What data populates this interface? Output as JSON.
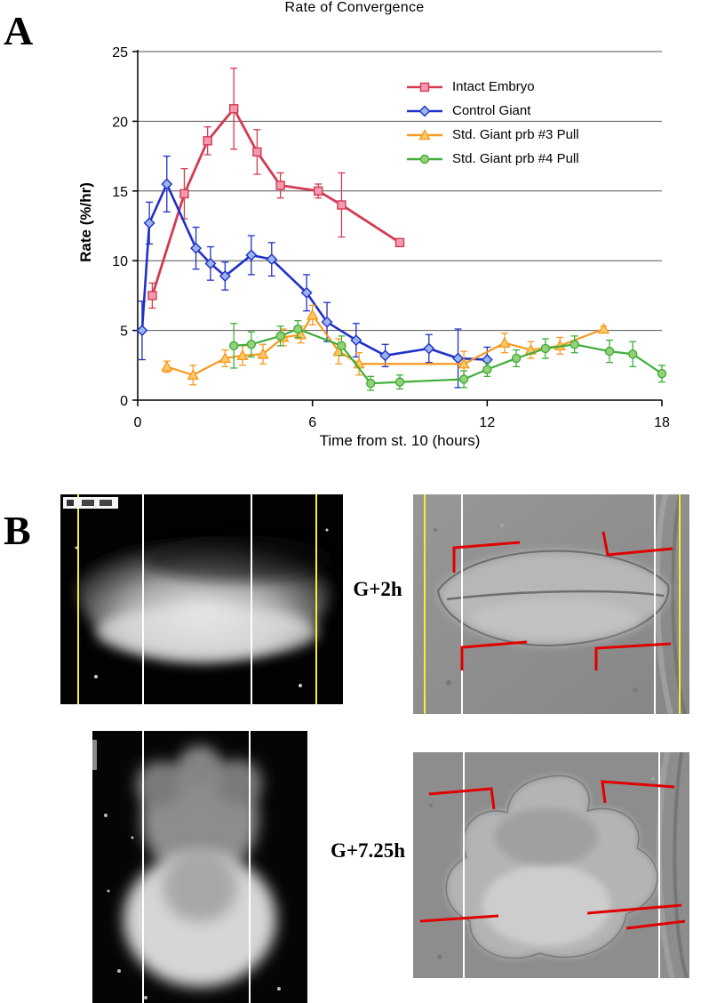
{
  "figure": {
    "panel_a_label": "A",
    "panel_b_label": "B"
  },
  "chart_data": {
    "type": "line",
    "title": "Rate of  Convergence",
    "xlabel": "Time from st. 10 (hours)",
    "ylabel": "Rate (%/hr)",
    "xlim": [
      0,
      18
    ],
    "ylim": [
      0,
      25
    ],
    "xticks": [
      0,
      6,
      12,
      18
    ],
    "yticks": [
      0,
      5,
      10,
      15,
      20,
      25
    ],
    "grid": "horizontal",
    "legend_position": "upper-right-inside",
    "error_bars": true,
    "series": [
      {
        "name": "Intact Embryo",
        "color": "#d23b50",
        "marker": "square",
        "marker_fill": "#f49ab0",
        "line_width": 2.8,
        "x": [
          0.5,
          1.6,
          2.4,
          3.3,
          4.1,
          4.9,
          6.2,
          7.0,
          9.0
        ],
        "y": [
          7.5,
          14.8,
          18.6,
          20.9,
          17.8,
          15.4,
          15.0,
          14.0,
          11.3
        ],
        "yerr": [
          0.9,
          1.8,
          1.0,
          2.9,
          1.6,
          0.9,
          0.5,
          2.3,
          0.2
        ]
      },
      {
        "name": "Control Giant",
        "color": "#2030c8",
        "marker": "diamond",
        "marker_fill": "#9ab4ec",
        "line_width": 2.6,
        "x": [
          0.15,
          0.4,
          1.0,
          2.0,
          2.5,
          3.0,
          3.9,
          4.6,
          5.8,
          6.5,
          7.5,
          8.5,
          10.0,
          11.0,
          12.0
        ],
        "y": [
          5.0,
          12.7,
          15.5,
          10.9,
          9.8,
          8.9,
          10.4,
          10.1,
          7.7,
          5.6,
          4.3,
          3.2,
          3.7,
          3.0,
          2.9
        ],
        "yerr": [
          2.1,
          1.5,
          2.0,
          1.5,
          1.2,
          1.0,
          1.4,
          1.2,
          1.3,
          1.4,
          1.2,
          0.8,
          1.0,
          2.1,
          0.9
        ]
      },
      {
        "name": "Std. Giant prb #3 Pull",
        "color": "#f59a1e",
        "marker": "triangle",
        "marker_fill": "#fdc96a",
        "line_width": 2.2,
        "x": [
          1.0,
          1.9,
          3.0,
          3.6,
          4.3,
          5.0,
          5.6,
          6.0,
          6.9,
          7.6,
          11.2,
          12.6,
          13.5,
          14.5,
          16.0
        ],
        "y": [
          2.4,
          1.8,
          3.0,
          3.2,
          3.3,
          4.5,
          4.7,
          6.1,
          3.5,
          2.6,
          2.6,
          4.1,
          3.6,
          3.9,
          5.1
        ],
        "yerr": [
          0.4,
          0.7,
          0.6,
          0.7,
          0.7,
          0.6,
          0.6,
          0.7,
          0.9,
          0.8,
          0.9,
          0.7,
          0.6,
          0.6,
          0.2
        ]
      },
      {
        "name": "Std. Giant prb #4 Pull",
        "color": "#3fae3a",
        "marker": "circle",
        "marker_fill": "#97d077",
        "line_width": 2.2,
        "x": [
          3.3,
          3.9,
          4.9,
          5.5,
          7.0,
          8.0,
          9.0,
          11.2,
          12.0,
          13.0,
          14.0,
          15.0,
          16.2,
          17.0,
          18.0
        ],
        "y": [
          3.9,
          4.0,
          4.6,
          5.1,
          3.9,
          1.2,
          1.3,
          1.5,
          2.2,
          3.0,
          3.7,
          4.0,
          3.5,
          3.3,
          1.9
        ],
        "yerr": [
          1.6,
          0.9,
          0.7,
          0.6,
          0.7,
          0.5,
          0.5,
          0.6,
          0.5,
          0.6,
          0.7,
          0.6,
          0.8,
          0.9,
          0.6
        ]
      }
    ]
  },
  "panel_b": {
    "labels": [
      {
        "text": "G+2h"
      },
      {
        "text": "G+7.25h"
      }
    ]
  }
}
